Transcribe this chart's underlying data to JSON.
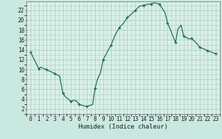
{
  "title": "",
  "xlabel": "Humidex (Indice chaleur)",
  "ylabel": "",
  "background_color": "#c8e8e0",
  "plot_bg_color": "#d8f0e8",
  "grid_color": "#b0ccc4",
  "line_color": "#1a6b5a",
  "marker_color": "#1a6b5a",
  "xlim": [
    -0.5,
    23.5
  ],
  "ylim": [
    1.0,
    23.8
  ],
  "yticks": [
    2,
    4,
    6,
    8,
    10,
    12,
    14,
    16,
    18,
    20,
    22
  ],
  "xticks": [
    0,
    1,
    2,
    3,
    4,
    5,
    6,
    7,
    8,
    9,
    10,
    11,
    12,
    13,
    14,
    15,
    16,
    17,
    18,
    19,
    20,
    21,
    22,
    23
  ],
  "data_x": [
    0,
    0.3,
    0.6,
    1.0,
    1.3,
    1.6,
    2.0,
    2.3,
    2.6,
    3.0,
    3.3,
    3.6,
    4.0,
    4.3,
    4.7,
    5.0,
    5.3,
    5.7,
    6.0,
    6.3,
    6.7,
    7.0,
    7.3,
    7.7,
    8.0,
    8.3,
    8.7,
    9.0,
    9.5,
    10.0,
    10.5,
    11.0,
    11.5,
    12.0,
    12.5,
    13.0,
    13.5,
    14.0,
    14.5,
    15.0,
    15.3,
    15.7,
    16.0,
    16.3,
    16.7,
    17.0,
    17.5,
    18.0,
    18.3,
    18.7,
    19.0,
    19.3,
    19.7,
    20.0,
    20.3,
    20.7,
    21.0,
    21.5,
    22.0,
    22.5,
    23.0
  ],
  "data_y": [
    13.5,
    12.5,
    11.5,
    10.2,
    10.5,
    10.2,
    10.0,
    9.7,
    9.5,
    9.2,
    8.9,
    8.7,
    5.2,
    4.5,
    4.0,
    3.5,
    3.8,
    3.6,
    3.0,
    2.8,
    2.6,
    2.5,
    2.7,
    2.9,
    6.2,
    8.0,
    9.5,
    12.0,
    13.5,
    15.0,
    17.0,
    18.5,
    19.3,
    20.5,
    21.2,
    22.0,
    22.8,
    23.0,
    23.2,
    23.3,
    23.5,
    23.4,
    23.2,
    22.5,
    21.5,
    19.5,
    17.5,
    15.5,
    18.2,
    19.0,
    16.8,
    16.5,
    16.2,
    16.3,
    15.8,
    15.2,
    14.5,
    14.2,
    13.8,
    13.5,
    13.2
  ],
  "marker_x": [
    0,
    1,
    2,
    3,
    4,
    5,
    6,
    7,
    8,
    9,
    10,
    11,
    12,
    13,
    14,
    15,
    16,
    17,
    18,
    19,
    20,
    21,
    22,
    23
  ],
  "marker_y": [
    13.5,
    10.2,
    10.0,
    9.2,
    5.2,
    3.5,
    3.0,
    2.5,
    6.2,
    12.0,
    15.0,
    18.5,
    20.5,
    22.0,
    23.0,
    23.3,
    23.2,
    19.5,
    15.5,
    16.8,
    16.3,
    14.5,
    13.8,
    13.2
  ]
}
